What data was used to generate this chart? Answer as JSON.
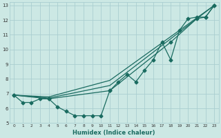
{
  "xlabel": "Humidex (Indice chaleur)",
  "bg_color": "#cce8e4",
  "grid_color": "#aaced0",
  "line_color": "#1a6b60",
  "xlim": [
    -0.5,
    23.5
  ],
  "ylim": [
    5,
    13.2
  ],
  "xticks": [
    0,
    1,
    2,
    3,
    4,
    5,
    6,
    7,
    8,
    9,
    10,
    11,
    12,
    13,
    14,
    15,
    16,
    17,
    18,
    19,
    20,
    21,
    22,
    23
  ],
  "yticks": [
    5,
    6,
    7,
    8,
    9,
    10,
    11,
    12,
    13
  ],
  "line1_x": [
    0,
    1,
    2,
    3,
    4,
    5,
    6,
    7,
    8,
    9,
    10,
    11,
    12,
    13,
    14,
    15,
    16,
    17,
    18,
    19,
    20,
    21,
    22,
    23
  ],
  "line1_y": [
    6.9,
    6.4,
    6.4,
    6.65,
    6.65,
    6.1,
    5.8,
    5.5,
    5.5,
    5.5,
    5.5,
    7.2,
    7.8,
    8.3,
    7.8,
    8.6,
    9.3,
    10.5,
    9.3,
    11.3,
    12.1,
    12.2,
    12.2,
    13.0
  ],
  "line2_x": [
    0,
    4,
    11,
    18,
    21,
    22,
    23
  ],
  "line2_y": [
    6.9,
    6.65,
    7.2,
    10.5,
    12.1,
    12.2,
    13.0
  ],
  "line3_x": [
    0,
    4,
    11,
    23
  ],
  "line3_y": [
    6.9,
    6.7,
    7.55,
    13.0
  ],
  "line4_x": [
    0,
    4,
    11,
    23
  ],
  "line4_y": [
    6.9,
    6.78,
    7.9,
    13.0
  ]
}
